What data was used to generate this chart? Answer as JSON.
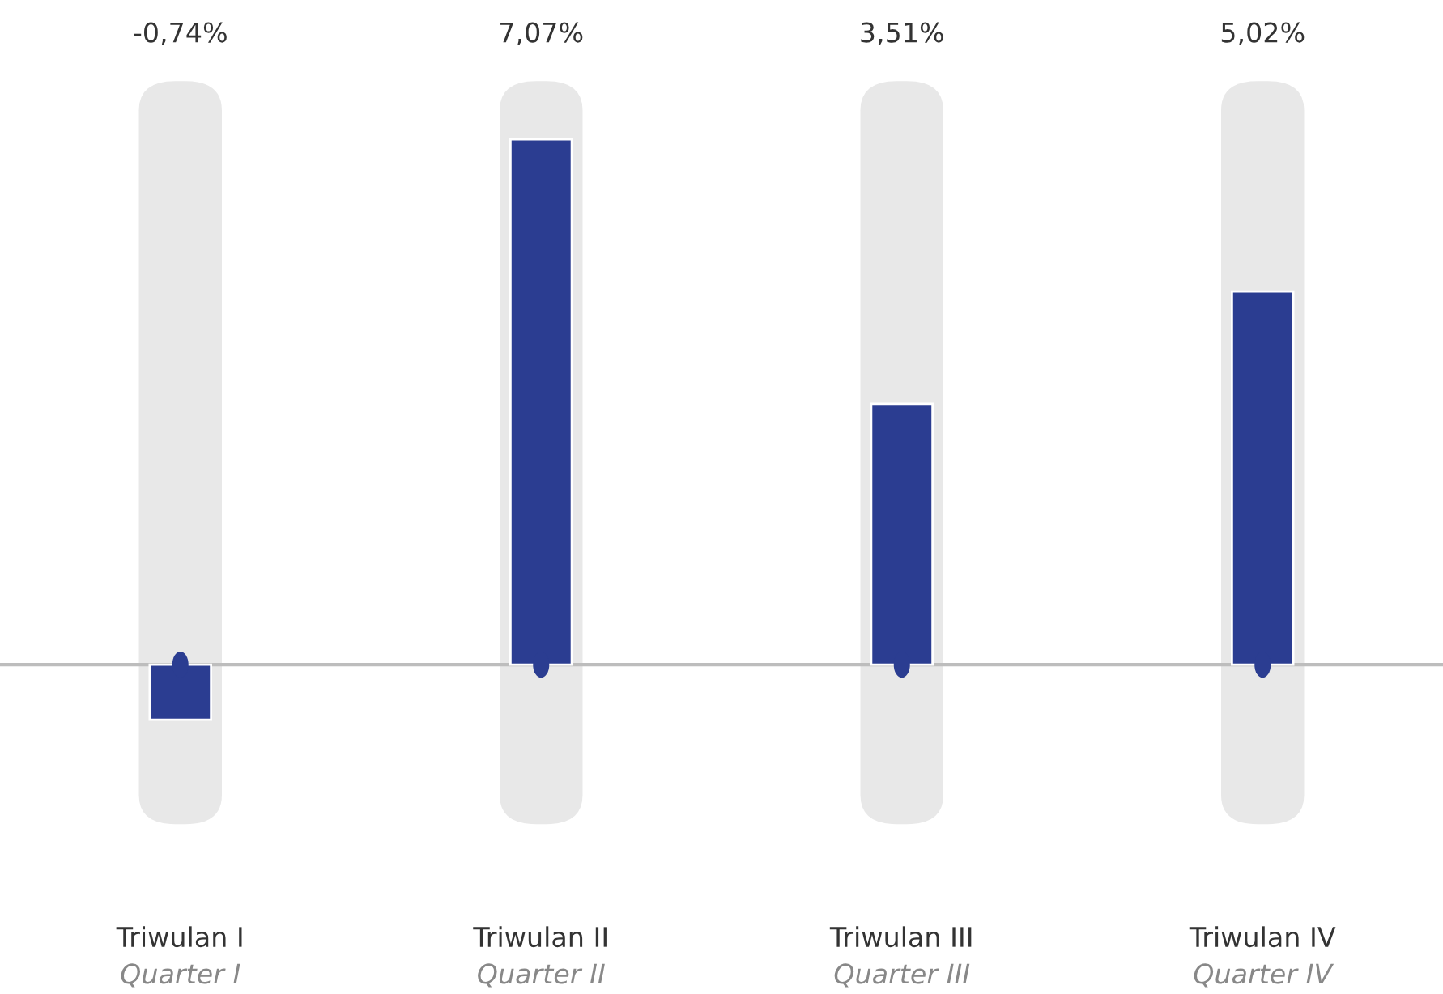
{
  "chart_data": {
    "type": "bar",
    "categories": [
      "Triwulan I\nQuarter I",
      "Triwulan II\nQuarter II",
      "Triwulan III\nQuarter III",
      "Triwulan IV\nQuarter IV"
    ],
    "values": [
      -0.74,
      7.07,
      3.51,
      5.02
    ],
    "value_labels": [
      "-0,74%",
      "7,07%",
      "3,51%",
      "5,02%"
    ],
    "color": "#2b3d91"
  }
}
